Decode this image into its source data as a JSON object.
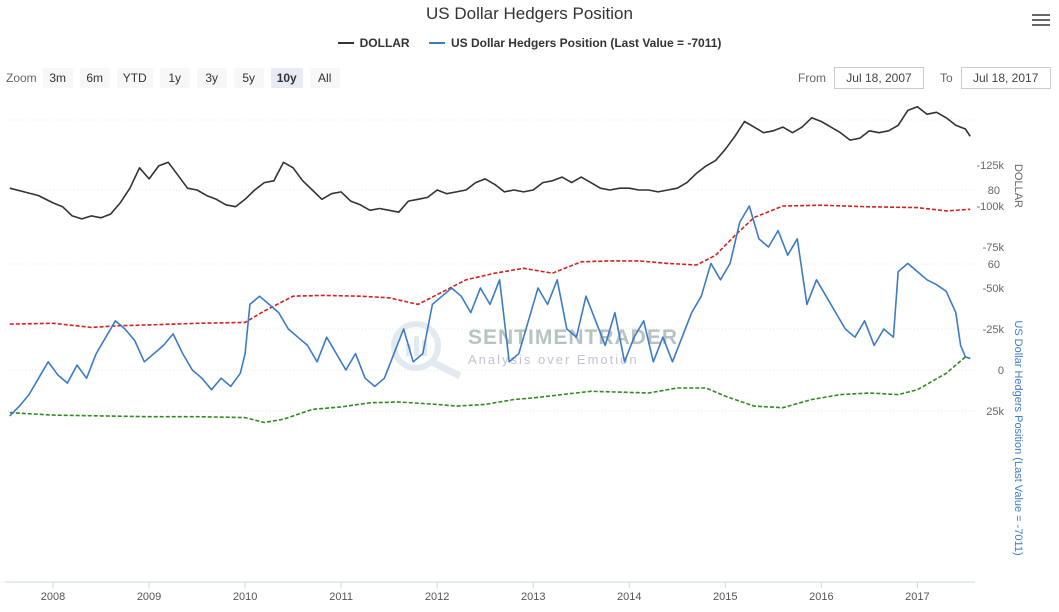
{
  "title": "US Dollar Hedgers Position",
  "legend": [
    {
      "name": "DOLLAR",
      "color": "#333333"
    },
    {
      "name": "US Dollar Hedgers Position (Last Value = -7011)",
      "color": "#3b7cc4"
    }
  ],
  "zoom": {
    "label": "Zoom",
    "buttons": [
      "3m",
      "6m",
      "YTD",
      "1y",
      "3y",
      "5y",
      "10y",
      "All"
    ],
    "active": "10y"
  },
  "range": {
    "from_label": "From",
    "from": "Jul 18, 2007",
    "to_label": "To",
    "to": "Jul 18, 2017"
  },
  "watermark": {
    "name": "SENTIMENTRADER",
    "tagline": "Analysis over Emotion"
  },
  "icons": {
    "menu": "hamburger-menu-icon",
    "watermark": "magnifier-chart-icon"
  },
  "chart_data": {
    "type": "line",
    "x_ticks": [
      "2008",
      "2009",
      "2010",
      "2011",
      "2012",
      "2013",
      "2014",
      "2015",
      "2016",
      "2017"
    ],
    "x_range": [
      2007.5,
      2017.6
    ],
    "upper_axis": {
      "label": "DOLLAR",
      "ticks": [
        "80",
        "60"
      ],
      "tick_values": [
        80,
        60
      ],
      "range": [
        60,
        100
      ]
    },
    "lower_axis": {
      "label": "US Dollar Hedgers Position (Last Value = -7011)",
      "ticks": [
        "25k",
        "0",
        "-25k",
        "-50k",
        "-75k",
        "-100k",
        "-125k"
      ],
      "tick_values": [
        25000,
        0,
        -25000,
        -50000,
        -75000,
        -100000,
        -125000
      ],
      "range": [
        -125000,
        30000
      ]
    },
    "dollar": [
      [
        2007.55,
        80.5
      ],
      [
        2007.7,
        79.5
      ],
      [
        2007.85,
        78.5
      ],
      [
        2008.0,
        76.5
      ],
      [
        2008.1,
        75.5
      ],
      [
        2008.2,
        73.0
      ],
      [
        2008.3,
        72.2
      ],
      [
        2008.4,
        73.0
      ],
      [
        2008.5,
        72.5
      ],
      [
        2008.6,
        73.5
      ],
      [
        2008.7,
        76.5
      ],
      [
        2008.8,
        80.5
      ],
      [
        2008.9,
        86.0
      ],
      [
        2009.0,
        83.0
      ],
      [
        2009.1,
        86.5
      ],
      [
        2009.2,
        87.5
      ],
      [
        2009.3,
        84.0
      ],
      [
        2009.4,
        80.5
      ],
      [
        2009.5,
        80.0
      ],
      [
        2009.6,
        78.5
      ],
      [
        2009.7,
        77.5
      ],
      [
        2009.8,
        76.0
      ],
      [
        2009.9,
        75.5
      ],
      [
        2010.0,
        77.5
      ],
      [
        2010.1,
        80.0
      ],
      [
        2010.2,
        82.0
      ],
      [
        2010.3,
        82.5
      ],
      [
        2010.4,
        87.5
      ],
      [
        2010.5,
        86.0
      ],
      [
        2010.6,
        82.5
      ],
      [
        2010.7,
        80.0
      ],
      [
        2010.8,
        77.5
      ],
      [
        2010.9,
        79.0
      ],
      [
        2011.0,
        79.5
      ],
      [
        2011.1,
        77.0
      ],
      [
        2011.2,
        76.0
      ],
      [
        2011.3,
        74.5
      ],
      [
        2011.4,
        75.0
      ],
      [
        2011.5,
        74.5
      ],
      [
        2011.6,
        74.0
      ],
      [
        2011.7,
        77.0
      ],
      [
        2011.8,
        77.5
      ],
      [
        2011.9,
        78.0
      ],
      [
        2012.0,
        80.0
      ],
      [
        2012.1,
        79.0
      ],
      [
        2012.2,
        79.5
      ],
      [
        2012.3,
        80.0
      ],
      [
        2012.4,
        82.0
      ],
      [
        2012.5,
        83.0
      ],
      [
        2012.6,
        81.5
      ],
      [
        2012.7,
        79.5
      ],
      [
        2012.8,
        80.0
      ],
      [
        2012.9,
        79.5
      ],
      [
        2013.0,
        80.0
      ],
      [
        2013.1,
        82.0
      ],
      [
        2013.2,
        82.5
      ],
      [
        2013.3,
        83.5
      ],
      [
        2013.4,
        82.0
      ],
      [
        2013.5,
        83.5
      ],
      [
        2013.6,
        82.0
      ],
      [
        2013.7,
        80.5
      ],
      [
        2013.8,
        80.0
      ],
      [
        2013.9,
        80.5
      ],
      [
        2014.0,
        80.5
      ],
      [
        2014.1,
        80.0
      ],
      [
        2014.2,
        80.0
      ],
      [
        2014.3,
        79.5
      ],
      [
        2014.4,
        80.0
      ],
      [
        2014.5,
        80.5
      ],
      [
        2014.6,
        82.0
      ],
      [
        2014.7,
        84.5
      ],
      [
        2014.8,
        86.5
      ],
      [
        2014.9,
        88.0
      ],
      [
        2015.0,
        91.0
      ],
      [
        2015.1,
        94.5
      ],
      [
        2015.2,
        98.5
      ],
      [
        2015.3,
        97.0
      ],
      [
        2015.4,
        95.5
      ],
      [
        2015.5,
        96.0
      ],
      [
        2015.6,
        97.0
      ],
      [
        2015.7,
        95.5
      ],
      [
        2015.8,
        97.0
      ],
      [
        2015.9,
        99.5
      ],
      [
        2016.0,
        98.5
      ],
      [
        2016.1,
        97.0
      ],
      [
        2016.2,
        95.5
      ],
      [
        2016.3,
        93.5
      ],
      [
        2016.4,
        94.0
      ],
      [
        2016.5,
        96.0
      ],
      [
        2016.6,
        95.5
      ],
      [
        2016.7,
        96.0
      ],
      [
        2016.8,
        97.5
      ],
      [
        2016.9,
        101.5
      ],
      [
        2017.0,
        102.5
      ],
      [
        2017.1,
        100.5
      ],
      [
        2017.2,
        101.0
      ],
      [
        2017.3,
        99.5
      ],
      [
        2017.4,
        97.5
      ],
      [
        2017.5,
        96.5
      ],
      [
        2017.55,
        94.5
      ]
    ],
    "hedgers": [
      [
        2007.55,
        28000
      ],
      [
        2007.65,
        22000
      ],
      [
        2007.75,
        15000
      ],
      [
        2007.85,
        5000
      ],
      [
        2007.95,
        -5000
      ],
      [
        2008.05,
        3000
      ],
      [
        2008.15,
        8000
      ],
      [
        2008.25,
        -3000
      ],
      [
        2008.35,
        5000
      ],
      [
        2008.45,
        -10000
      ],
      [
        2008.55,
        -20000
      ],
      [
        2008.65,
        -30000
      ],
      [
        2008.75,
        -25000
      ],
      [
        2008.85,
        -18000
      ],
      [
        2008.95,
        -5000
      ],
      [
        2009.05,
        -10000
      ],
      [
        2009.15,
        -15000
      ],
      [
        2009.25,
        -22000
      ],
      [
        2009.35,
        -10000
      ],
      [
        2009.45,
        0
      ],
      [
        2009.55,
        5000
      ],
      [
        2009.65,
        12000
      ],
      [
        2009.75,
        5000
      ],
      [
        2009.85,
        10000
      ],
      [
        2009.95,
        2000
      ],
      [
        2010.0,
        -10000
      ],
      [
        2010.05,
        -40000
      ],
      [
        2010.15,
        -45000
      ],
      [
        2010.25,
        -40000
      ],
      [
        2010.35,
        -35000
      ],
      [
        2010.45,
        -25000
      ],
      [
        2010.55,
        -20000
      ],
      [
        2010.65,
        -15000
      ],
      [
        2010.75,
        -5000
      ],
      [
        2010.85,
        -20000
      ],
      [
        2010.95,
        -10000
      ],
      [
        2011.05,
        0
      ],
      [
        2011.15,
        -10000
      ],
      [
        2011.25,
        5000
      ],
      [
        2011.35,
        10000
      ],
      [
        2011.45,
        5000
      ],
      [
        2011.55,
        -10000
      ],
      [
        2011.65,
        -25000
      ],
      [
        2011.75,
        -5000
      ],
      [
        2011.85,
        -10000
      ],
      [
        2011.95,
        -40000
      ],
      [
        2012.05,
        -45000
      ],
      [
        2012.15,
        -50000
      ],
      [
        2012.25,
        -45000
      ],
      [
        2012.35,
        -35000
      ],
      [
        2012.45,
        -50000
      ],
      [
        2012.55,
        -40000
      ],
      [
        2012.65,
        -55000
      ],
      [
        2012.75,
        -5000
      ],
      [
        2012.85,
        -10000
      ],
      [
        2012.95,
        -30000
      ],
      [
        2013.05,
        -50000
      ],
      [
        2013.15,
        -40000
      ],
      [
        2013.25,
        -55000
      ],
      [
        2013.35,
        -25000
      ],
      [
        2013.45,
        -20000
      ],
      [
        2013.55,
        -45000
      ],
      [
        2013.65,
        -30000
      ],
      [
        2013.75,
        -15000
      ],
      [
        2013.85,
        -35000
      ],
      [
        2013.95,
        -5000
      ],
      [
        2014.05,
        -20000
      ],
      [
        2014.15,
        -30000
      ],
      [
        2014.25,
        -5000
      ],
      [
        2014.35,
        -20000
      ],
      [
        2014.45,
        -5000
      ],
      [
        2014.55,
        -20000
      ],
      [
        2014.65,
        -35000
      ],
      [
        2014.75,
        -45000
      ],
      [
        2014.85,
        -65000
      ],
      [
        2014.95,
        -55000
      ],
      [
        2015.05,
        -65000
      ],
      [
        2015.15,
        -90000
      ],
      [
        2015.25,
        -100000
      ],
      [
        2015.35,
        -80000
      ],
      [
        2015.45,
        -75000
      ],
      [
        2015.55,
        -85000
      ],
      [
        2015.65,
        -70000
      ],
      [
        2015.75,
        -80000
      ],
      [
        2015.85,
        -40000
      ],
      [
        2015.95,
        -55000
      ],
      [
        2016.05,
        -45000
      ],
      [
        2016.15,
        -35000
      ],
      [
        2016.25,
        -25000
      ],
      [
        2016.35,
        -20000
      ],
      [
        2016.45,
        -30000
      ],
      [
        2016.55,
        -15000
      ],
      [
        2016.65,
        -25000
      ],
      [
        2016.75,
        -20000
      ],
      [
        2016.8,
        -60000
      ],
      [
        2016.9,
        -65000
      ],
      [
        2017.0,
        -60000
      ],
      [
        2017.1,
        -55000
      ],
      [
        2017.2,
        -52000
      ],
      [
        2017.3,
        -48000
      ],
      [
        2017.4,
        -35000
      ],
      [
        2017.45,
        -15000
      ],
      [
        2017.5,
        -8000
      ],
      [
        2017.55,
        -7011
      ]
    ],
    "upper_band": [
      [
        2007.55,
        26000
      ],
      [
        2008.0,
        27500
      ],
      [
        2008.5,
        28000
      ],
      [
        2009.0,
        28500
      ],
      [
        2009.5,
        28500
      ],
      [
        2010.0,
        29000
      ],
      [
        2010.2,
        32000
      ],
      [
        2010.4,
        30000
      ],
      [
        2010.7,
        24000
      ],
      [
        2011.0,
        22500
      ],
      [
        2011.3,
        20000
      ],
      [
        2011.6,
        19500
      ],
      [
        2012.0,
        21000
      ],
      [
        2012.2,
        22000
      ],
      [
        2012.5,
        21000
      ],
      [
        2012.8,
        18000
      ],
      [
        2013.0,
        17000
      ],
      [
        2013.3,
        15000
      ],
      [
        2013.6,
        13000
      ],
      [
        2013.9,
        13500
      ],
      [
        2014.2,
        14000
      ],
      [
        2014.5,
        11000
      ],
      [
        2014.8,
        11000
      ],
      [
        2015.0,
        16000
      ],
      [
        2015.3,
        22000
      ],
      [
        2015.6,
        23000
      ],
      [
        2015.9,
        18000
      ],
      [
        2016.2,
        15000
      ],
      [
        2016.5,
        14000
      ],
      [
        2016.8,
        15000
      ],
      [
        2017.0,
        12000
      ],
      [
        2017.3,
        2000
      ],
      [
        2017.5,
        -8000
      ],
      [
        2017.55,
        -7000
      ]
    ],
    "lower_band": [
      [
        2007.55,
        -28000
      ],
      [
        2008.0,
        -28500
      ],
      [
        2008.4,
        -26000
      ],
      [
        2008.7,
        -27000
      ],
      [
        2009.0,
        -27500
      ],
      [
        2009.5,
        -28500
      ],
      [
        2010.0,
        -29000
      ],
      [
        2010.2,
        -36000
      ],
      [
        2010.5,
        -45000
      ],
      [
        2010.8,
        -45500
      ],
      [
        2011.2,
        -45000
      ],
      [
        2011.5,
        -44000
      ],
      [
        2011.8,
        -40000
      ],
      [
        2012.0,
        -46000
      ],
      [
        2012.3,
        -55000
      ],
      [
        2012.6,
        -59000
      ],
      [
        2012.9,
        -62000
      ],
      [
        2013.2,
        -59000
      ],
      [
        2013.5,
        -66000
      ],
      [
        2013.8,
        -66500
      ],
      [
        2014.1,
        -66500
      ],
      [
        2014.4,
        -65000
      ],
      [
        2014.7,
        -64000
      ],
      [
        2014.9,
        -70000
      ],
      [
        2015.1,
        -82000
      ],
      [
        2015.3,
        -93000
      ],
      [
        2015.6,
        -100000
      ],
      [
        2016.0,
        -100500
      ],
      [
        2016.5,
        -99500
      ],
      [
        2017.0,
        -99000
      ],
      [
        2017.3,
        -97000
      ],
      [
        2017.55,
        -98000
      ]
    ]
  }
}
